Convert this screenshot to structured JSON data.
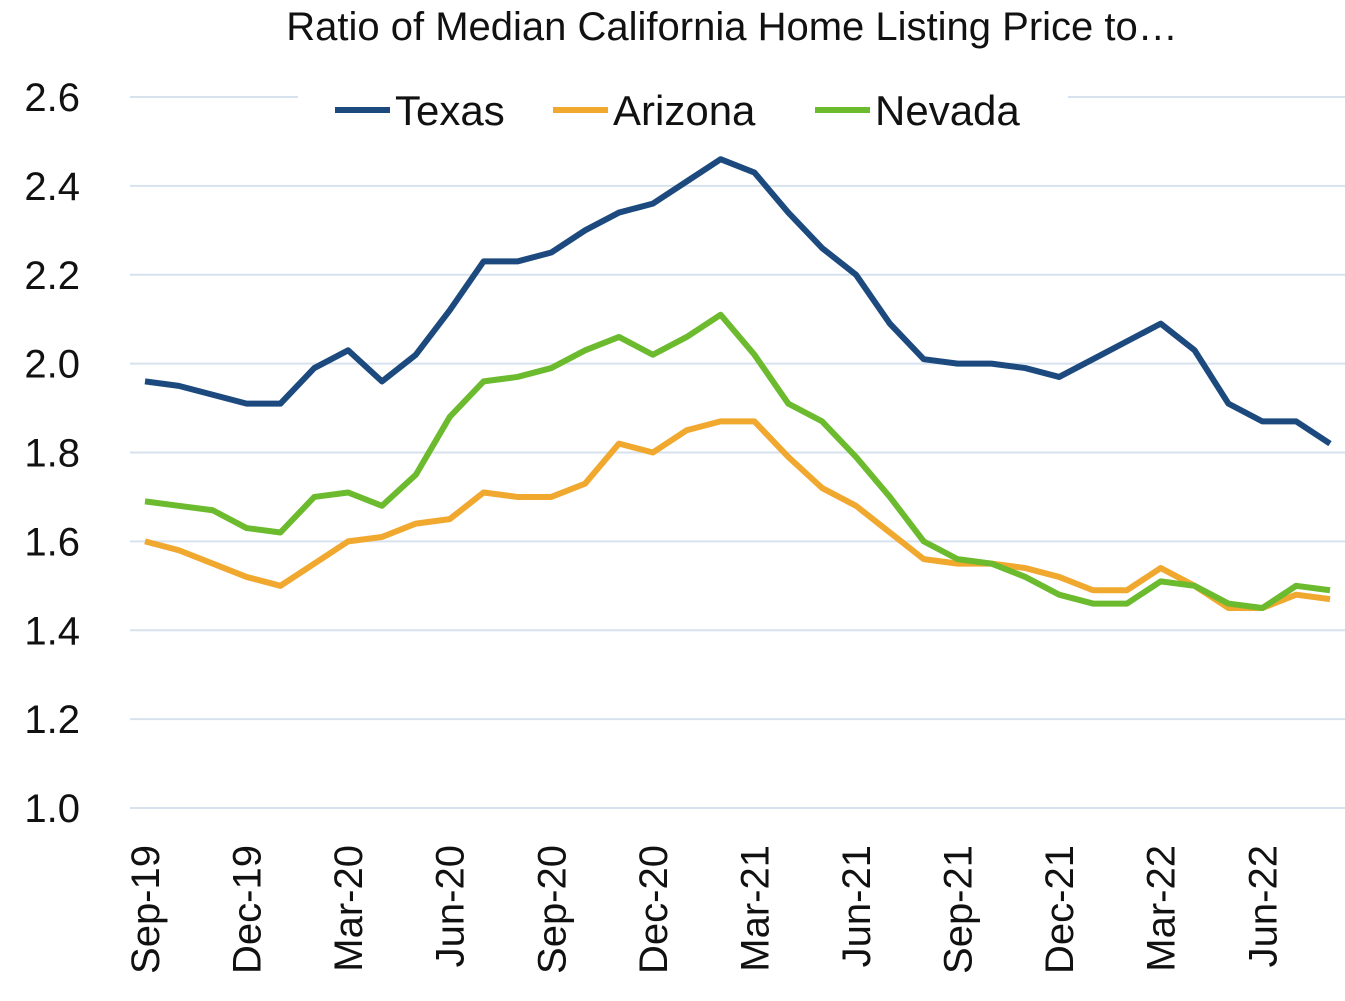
{
  "chart_data": {
    "type": "line",
    "title": "Ratio of Median California Home Listing Price to…",
    "categories": [
      "Sep-19",
      null,
      null,
      "Dec-19",
      null,
      null,
      "Mar-20",
      null,
      null,
      "Jun-20",
      null,
      null,
      "Sep-20",
      null,
      null,
      "Dec-20",
      null,
      null,
      "Mar-21",
      null,
      null,
      "Jun-21",
      null,
      null,
      "Sep-21",
      null,
      null,
      "Dec-21",
      null,
      null,
      "Mar-22",
      null,
      null,
      "Jun-22",
      null,
      null
    ],
    "series": [
      {
        "name": "Texas",
        "color": "#1c4a7e",
        "values": [
          1.96,
          1.95,
          1.93,
          1.91,
          1.91,
          1.99,
          2.03,
          1.96,
          2.02,
          2.12,
          2.23,
          2.23,
          2.25,
          2.3,
          2.34,
          2.36,
          2.41,
          2.46,
          2.43,
          2.34,
          2.26,
          2.2,
          2.09,
          2.01,
          2.0,
          2.0,
          1.99,
          1.97,
          2.01,
          2.05,
          2.09,
          2.03,
          1.91,
          1.87,
          1.87,
          1.82
        ]
      },
      {
        "name": "Arizona",
        "color": "#f0a82e",
        "values": [
          1.6,
          1.58,
          1.55,
          1.52,
          1.5,
          1.55,
          1.6,
          1.61,
          1.64,
          1.65,
          1.71,
          1.7,
          1.7,
          1.73,
          1.82,
          1.8,
          1.85,
          1.87,
          1.87,
          1.79,
          1.72,
          1.68,
          1.62,
          1.56,
          1.55,
          1.55,
          1.54,
          1.52,
          1.49,
          1.49,
          1.54,
          1.5,
          1.45,
          1.45,
          1.48,
          1.47
        ]
      },
      {
        "name": "Nevada",
        "color": "#6cbb2e",
        "values": [
          1.69,
          1.68,
          1.67,
          1.63,
          1.62,
          1.7,
          1.71,
          1.68,
          1.75,
          1.88,
          1.96,
          1.97,
          1.99,
          2.03,
          2.06,
          2.02,
          2.06,
          2.11,
          2.02,
          1.91,
          1.87,
          1.79,
          1.7,
          1.6,
          1.56,
          1.55,
          1.52,
          1.48,
          1.46,
          1.46,
          1.51,
          1.5,
          1.46,
          1.45,
          1.5,
          1.49
        ]
      }
    ],
    "ylim": [
      1.0,
      2.6
    ],
    "yticks": [
      {
        "value": 1.0,
        "label": "1.0"
      },
      1.2,
      1.4,
      1.6,
      1.8,
      {
        "value": 2.0,
        "label": "2.0"
      },
      2.2,
      2.4,
      2.6
    ],
    "grid": true,
    "legend": "top"
  }
}
